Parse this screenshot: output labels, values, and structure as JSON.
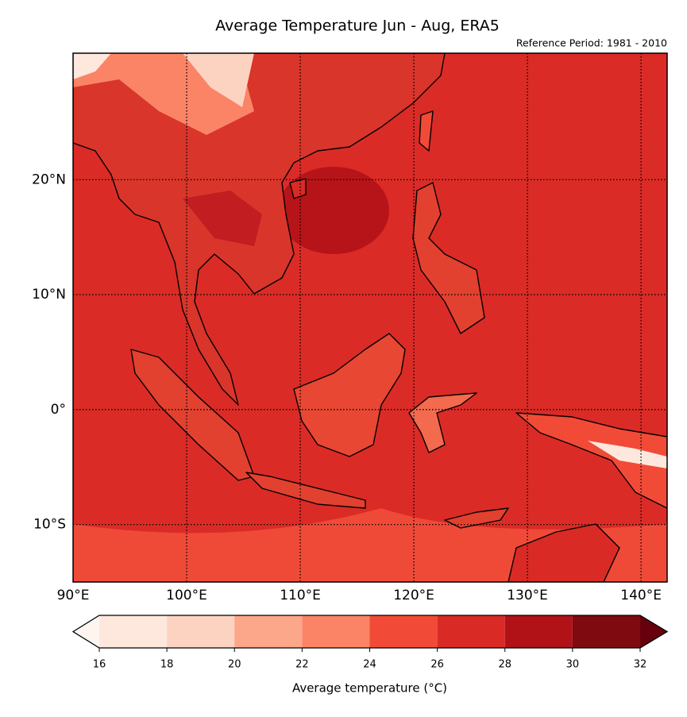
{
  "title": "Average Temperature Jun - Aug, ERA5",
  "subtitle": "Reference Period: 1981 - 2010",
  "map": {
    "lonlim": [
      90,
      142.3
    ],
    "latlim": [
      -15,
      31
    ],
    "lonticks": [
      {
        "value": 90,
        "label": "90°E"
      },
      {
        "value": 100,
        "label": "100°E"
      },
      {
        "value": 110,
        "label": "110°E"
      },
      {
        "value": 120,
        "label": "120°E"
      },
      {
        "value": 130,
        "label": "130°E"
      },
      {
        "value": 140,
        "label": "140°E"
      }
    ],
    "latticks": [
      {
        "value": -10,
        "label": "10°S"
      },
      {
        "value": 0,
        "label": "0°"
      },
      {
        "value": 10,
        "label": "10°N"
      },
      {
        "value": 20,
        "label": "20°N"
      }
    ]
  },
  "colorbar": {
    "label": "Average temperature (°C)",
    "ticks": [
      16,
      18,
      20,
      22,
      24,
      26,
      28,
      30,
      32
    ],
    "colors": [
      "#fee8dd",
      "#fcd3c1",
      "#fca68a",
      "#fb8466",
      "#f14b37",
      "#d92a25",
      "#b11218",
      "#7f0a10"
    ],
    "under_color": "#fff5f0",
    "over_color": "#67000d"
  }
}
